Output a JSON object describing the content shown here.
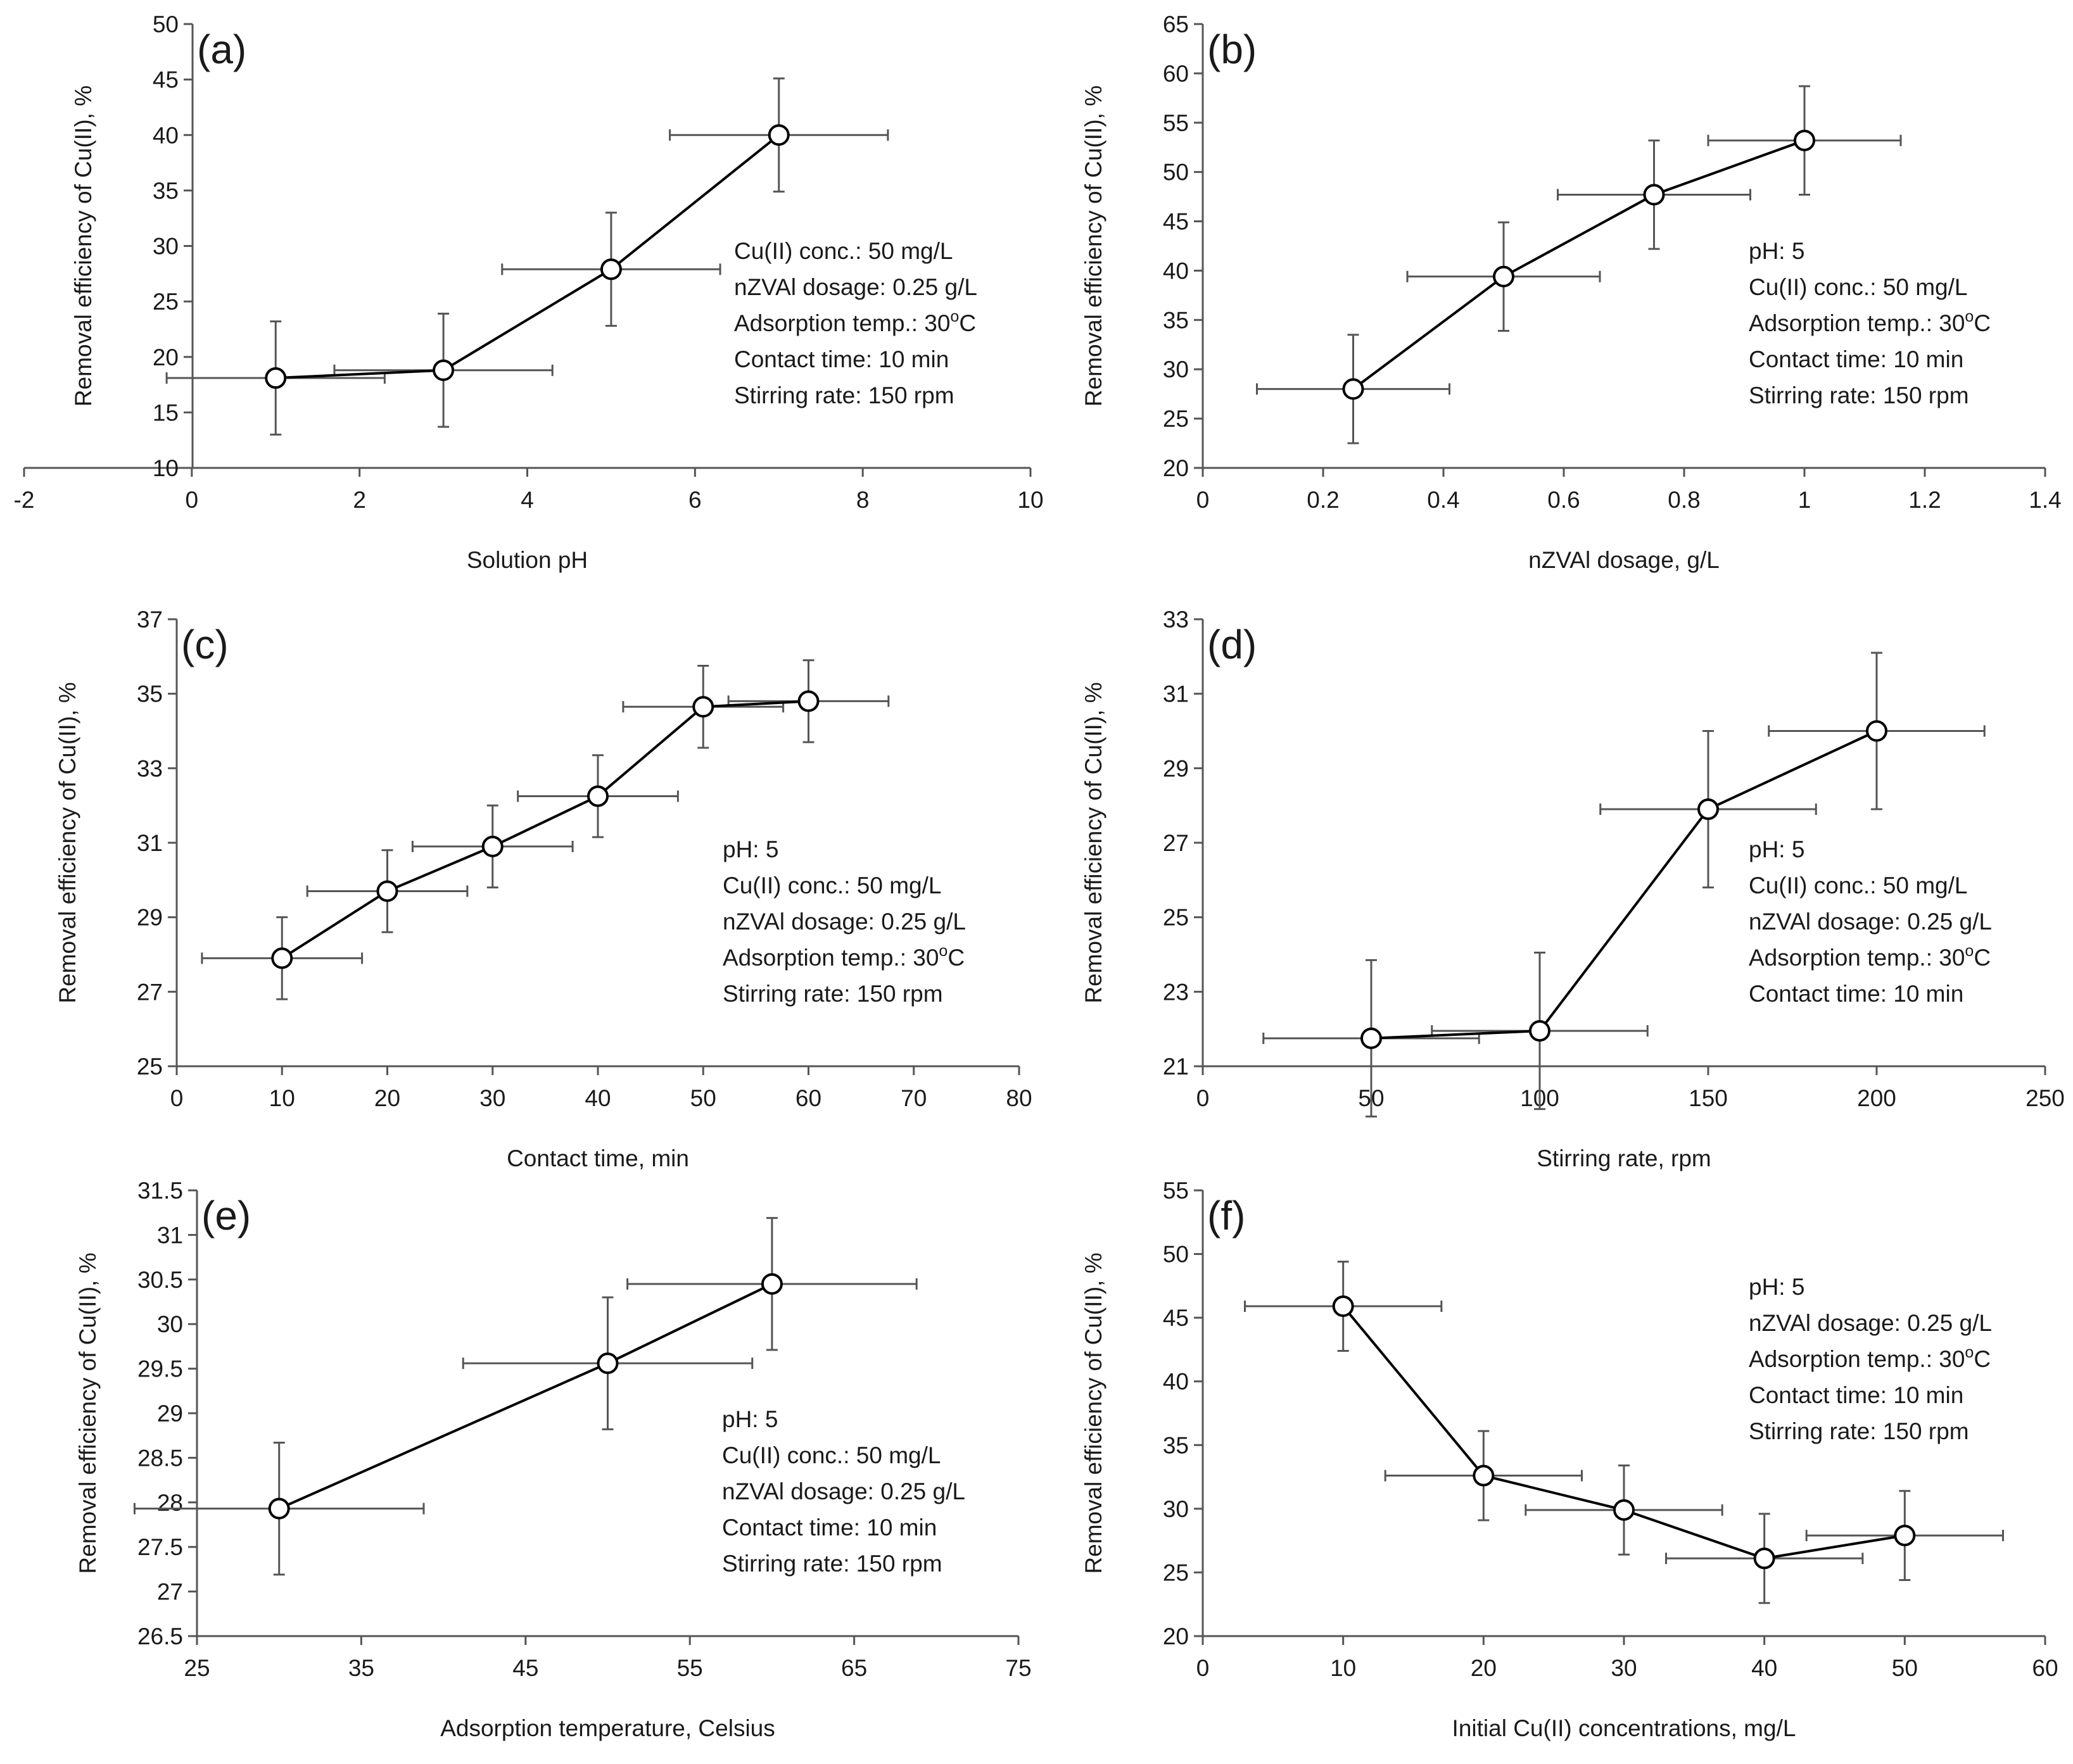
{
  "chart_data": [
    {
      "id": "a",
      "type": "scatter",
      "panel_label": "(a)",
      "xlabel": "Solution pH",
      "ylabel": "Removal efficiency of Cu(II), %",
      "xlim": [
        -2,
        10
      ],
      "ylim": [
        10,
        50
      ],
      "xticks": [
        -2,
        0,
        2,
        4,
        6,
        8,
        10
      ],
      "yticks": [
        10,
        15,
        20,
        25,
        30,
        35,
        40,
        45,
        50
      ],
      "points": [
        {
          "x": 1,
          "y": 18.1,
          "xerr": 1.3,
          "yerr": 5.1
        },
        {
          "x": 3,
          "y": 18.8,
          "xerr": 1.3,
          "yerr": 5.1
        },
        {
          "x": 5,
          "y": 27.9,
          "xerr": 1.3,
          "yerr": 5.1
        },
        {
          "x": 7,
          "y": 40.0,
          "xerr": 1.3,
          "yerr": 5.1
        }
      ],
      "annotation": [
        {
          "label": "Cu(II) conc.: 50 mg/L"
        },
        {
          "label": "nZVAl dosage: 0.25 g/L"
        },
        {
          "label": "Adsorption temp.: 30",
          "sup": "o",
          "suffix": "C"
        },
        {
          "label": "Contact time: 10 min"
        },
        {
          "label": "Stirring rate: 150 rpm"
        }
      ]
    },
    {
      "id": "b",
      "type": "scatter",
      "panel_label": "(b)",
      "xlabel": "nZVAl dosage, g/L",
      "ylabel": "Removal efficiency of Cu(II), %",
      "xlim": [
        0,
        1.4
      ],
      "ylim": [
        20,
        65
      ],
      "xticks": [
        0,
        0.2,
        0.4,
        0.6,
        0.8,
        1,
        1.2,
        1.4
      ],
      "yticks": [
        20,
        25,
        30,
        35,
        40,
        45,
        50,
        55,
        60,
        65
      ],
      "points": [
        {
          "x": 0.25,
          "y": 28.0,
          "xerr": 0.16,
          "yerr": 5.5
        },
        {
          "x": 0.5,
          "y": 39.4,
          "xerr": 0.16,
          "yerr": 5.5
        },
        {
          "x": 0.75,
          "y": 47.7,
          "xerr": 0.16,
          "yerr": 5.5
        },
        {
          "x": 1.0,
          "y": 53.2,
          "xerr": 0.16,
          "yerr": 5.5
        }
      ],
      "annotation": [
        {
          "label": "pH: 5"
        },
        {
          "label": "Cu(II) conc.: 50 mg/L"
        },
        {
          "label": "Adsorption temp.: 30",
          "sup": "o",
          "suffix": "C"
        },
        {
          "label": "Contact time: 10 min"
        },
        {
          "label": "Stirring rate: 150 rpm"
        }
      ]
    },
    {
      "id": "c",
      "type": "scatter",
      "panel_label": "(c)",
      "xlabel": "Contact time, min",
      "ylabel": "Removal efficiency of Cu(II), %",
      "xlim": [
        0,
        80
      ],
      "ylim": [
        25,
        37
      ],
      "xticks": [
        0,
        10,
        20,
        30,
        40,
        50,
        60,
        70,
        80
      ],
      "yticks": [
        25,
        27,
        29,
        31,
        33,
        35,
        37
      ],
      "points": [
        {
          "x": 10,
          "y": 27.9,
          "xerr": 7.6,
          "yerr": 1.1
        },
        {
          "x": 20,
          "y": 29.7,
          "xerr": 7.6,
          "yerr": 1.1
        },
        {
          "x": 30,
          "y": 30.9,
          "xerr": 7.6,
          "yerr": 1.1
        },
        {
          "x": 40,
          "y": 32.25,
          "xerr": 7.6,
          "yerr": 1.1
        },
        {
          "x": 50,
          "y": 34.65,
          "xerr": 7.6,
          "yerr": 1.1
        },
        {
          "x": 60,
          "y": 34.8,
          "xerr": 7.6,
          "yerr": 1.1
        }
      ],
      "annotation": [
        {
          "label": "pH: 5"
        },
        {
          "label": "Cu(II) conc.: 50 mg/L"
        },
        {
          "label": "nZVAl dosage: 0.25 g/L"
        },
        {
          "label": "Adsorption temp.: 30",
          "sup": "o",
          "suffix": "C"
        },
        {
          "label": "Stirring rate: 150 rpm"
        }
      ]
    },
    {
      "id": "d",
      "type": "scatter",
      "panel_label": "(d)",
      "xlabel": "Stirring rate, rpm",
      "ylabel": "Removal efficiency of Cu(II), %",
      "xlim": [
        0,
        250
      ],
      "ylim": [
        21,
        33
      ],
      "xticks": [
        0,
        50,
        100,
        150,
        200,
        250
      ],
      "yticks": [
        21,
        23,
        25,
        27,
        29,
        31,
        33
      ],
      "points": [
        {
          "x": 50,
          "y": 21.75,
          "xerr": 32,
          "yerr": 2.1
        },
        {
          "x": 100,
          "y": 21.95,
          "xerr": 32,
          "yerr": 2.1
        },
        {
          "x": 150,
          "y": 27.9,
          "xerr": 32,
          "yerr": 2.1
        },
        {
          "x": 200,
          "y": 30.0,
          "xerr": 32,
          "yerr": 2.1
        }
      ],
      "annotation": [
        {
          "label": "pH: 5"
        },
        {
          "label": "Cu(II) conc.: 50 mg/L"
        },
        {
          "label": "nZVAl dosage: 0.25 g/L"
        },
        {
          "label": "Adsorption temp.: 30",
          "sup": "o",
          "suffix": "C"
        },
        {
          "label": "Contact time: 10 min"
        }
      ]
    },
    {
      "id": "e",
      "type": "scatter",
      "panel_label": "(e)",
      "xlabel": "Adsorption temperature, Celsius",
      "ylabel": "Removal efficiency of Cu(II), %",
      "xlim": [
        25,
        75
      ],
      "ylim": [
        26.5,
        31.5
      ],
      "xticks": [
        25,
        35,
        45,
        55,
        65,
        75
      ],
      "yticks": [
        26.5,
        27,
        27.5,
        28,
        28.5,
        29,
        29.5,
        30,
        30.5,
        31,
        31.5
      ],
      "points": [
        {
          "x": 30,
          "y": 27.93,
          "xerr": 8.8,
          "yerr": 0.74
        },
        {
          "x": 50,
          "y": 29.56,
          "xerr": 8.8,
          "yerr": 0.74
        },
        {
          "x": 60,
          "y": 30.45,
          "xerr": 8.8,
          "yerr": 0.74
        }
      ],
      "annotation": [
        {
          "label": "pH: 5"
        },
        {
          "label": "Cu(II) conc.: 50 mg/L"
        },
        {
          "label": "nZVAl dosage: 0.25 g/L"
        },
        {
          "label": "Contact time: 10 min"
        },
        {
          "label": "Stirring rate: 150 rpm"
        }
      ]
    },
    {
      "id": "f",
      "type": "scatter",
      "panel_label": "(f)",
      "xlabel": "Initial Cu(II) concentrations, mg/L",
      "ylabel": "Removal efficiency of Cu(II), %",
      "xlim": [
        0,
        60
      ],
      "ylim": [
        20,
        55
      ],
      "xticks": [
        0,
        10,
        20,
        30,
        40,
        50,
        60
      ],
      "yticks": [
        20,
        25,
        30,
        35,
        40,
        45,
        50,
        55
      ],
      "points": [
        {
          "x": 10,
          "y": 45.9,
          "xerr": 7,
          "yerr": 3.5
        },
        {
          "x": 20,
          "y": 32.6,
          "xerr": 7,
          "yerr": 3.5
        },
        {
          "x": 30,
          "y": 29.9,
          "xerr": 7,
          "yerr": 3.5
        },
        {
          "x": 40,
          "y": 26.1,
          "xerr": 7,
          "yerr": 3.5
        },
        {
          "x": 50,
          "y": 27.9,
          "xerr": 7,
          "yerr": 3.5
        }
      ],
      "annotation": [
        {
          "label": "pH: 5"
        },
        {
          "label": "nZVAl dosage: 0.25 g/L"
        },
        {
          "label": "Adsorption temp.: 30",
          "sup": "o",
          "suffix": "C"
        },
        {
          "label": "Contact time: 10 min"
        },
        {
          "label": "Stirring rate: 150 rpm"
        }
      ]
    }
  ]
}
